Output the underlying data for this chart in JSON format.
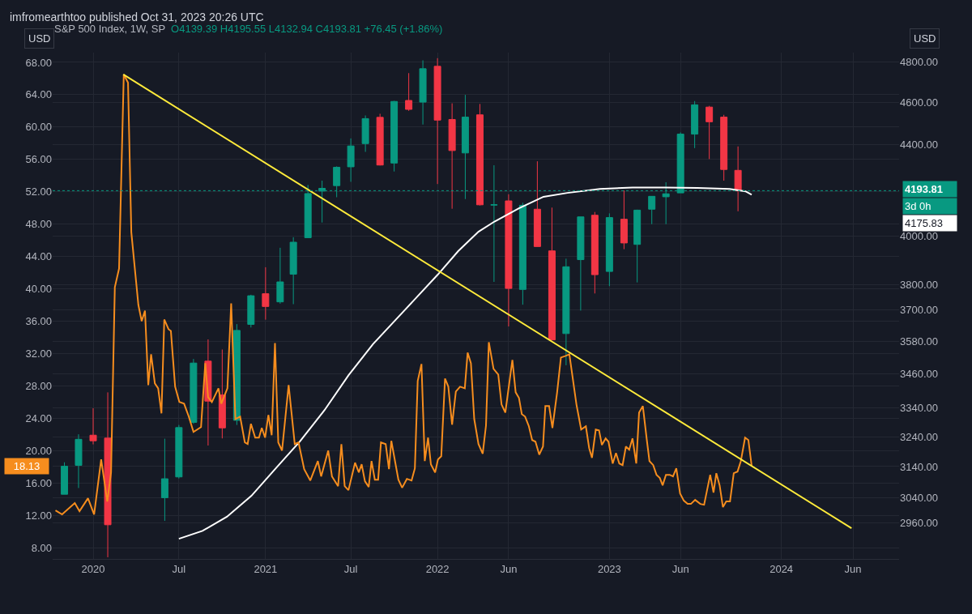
{
  "chart_data": {
    "type": "candlestick",
    "title": "S&P 500 Index, 1W, SP",
    "subtitle": "O4139.39 H4195.55 L4132.94 C4193.81 +76.45 (+1.86%)",
    "ylabel": "USD",
    "y2label": "USD",
    "xlim": [
      "2019-10-07",
      "2024-09-07"
    ],
    "xticks": [
      {
        "value": "2020-01-01",
        "label": "2020"
      },
      {
        "value": "2020-07-01",
        "label": "Jul"
      },
      {
        "value": "2021-01-01",
        "label": "2021"
      },
      {
        "value": "2021-07-01",
        "label": "Jul"
      },
      {
        "value": "2022-01-01",
        "label": "2022"
      },
      {
        "value": "2022-06-01",
        "label": "Jun"
      },
      {
        "value": "2023-01-01",
        "label": "2023"
      },
      {
        "value": "2023-06-01",
        "label": "Jun"
      },
      {
        "value": "2024-01-01",
        "label": "2024"
      },
      {
        "value": "2024-06-01",
        "label": "Jun"
      }
    ],
    "ylim": [
      6.6,
      69.2
    ],
    "yticks": [
      {
        "value": 8,
        "label": "8.00"
      },
      {
        "value": 12,
        "label": "12.00"
      },
      {
        "value": 16,
        "label": "16.00"
      },
      {
        "value": 20,
        "label": "20.00"
      },
      {
        "value": 24,
        "label": "24.00"
      },
      {
        "value": 28,
        "label": "28.00"
      },
      {
        "value": 32,
        "label": "32.00"
      },
      {
        "value": 36,
        "label": "36.00"
      },
      {
        "value": 40,
        "label": "40.00"
      },
      {
        "value": 44,
        "label": "44.00"
      },
      {
        "value": 48,
        "label": "48.00"
      },
      {
        "value": 52,
        "label": "52.00"
      },
      {
        "value": 56,
        "label": "56.00"
      },
      {
        "value": 60,
        "label": "60.00"
      },
      {
        "value": 64,
        "label": "64.00"
      },
      {
        "value": 68,
        "label": "68.00"
      }
    ],
    "y2lim": [
      2850,
      4847
    ],
    "y2ticks": [
      {
        "value": 2960,
        "label": "2960.00"
      },
      {
        "value": 3040,
        "label": "3040.00"
      },
      {
        "value": 3140,
        "label": "3140.00"
      },
      {
        "value": 3240,
        "label": "3240.00"
      },
      {
        "value": 3340,
        "label": "3340.00"
      },
      {
        "value": 3460,
        "label": "3460.00"
      },
      {
        "value": 3580,
        "label": "3580.00"
      },
      {
        "value": 3700,
        "label": "3700.00"
      },
      {
        "value": 3800,
        "label": "3800.00"
      },
      {
        "value": 4000,
        "label": "4000.00"
      },
      {
        "value": 4400,
        "label": "4400.00"
      },
      {
        "value": 4600,
        "label": "4600.00"
      },
      {
        "value": 4800,
        "label": "4800.00"
      }
    ],
    "log": "y2",
    "grid": true,
    "series": [
      {
        "type": "line",
        "color": "#f68d1e",
        "x": [
          "2019-10-13",
          "2019-10-27",
          "2019-11-23",
          "2019-12-03",
          "2019-12-21",
          "2020-01-03",
          "2020-01-18",
          "2020-01-31",
          "2020-02-08",
          "2020-02-16",
          "2020-02-25",
          "2020-03-06",
          "2020-03-15",
          "2020-03-22",
          "2020-04-01",
          "2020-04-06",
          "2020-04-13",
          "2020-04-20",
          "2020-04-27",
          "2020-05-03",
          "2020-05-11",
          "2020-05-18",
          "2020-05-25",
          "2020-05-31",
          "2020-06-09",
          "2020-06-14",
          "2020-06-23",
          "2020-07-02",
          "2020-07-12",
          "2020-07-22",
          "2020-08-01",
          "2020-08-17",
          "2020-08-26",
          "2020-09-01",
          "2020-09-09",
          "2020-09-23",
          "2020-09-29",
          "2020-10-12",
          "2020-10-20",
          "2020-10-29",
          "2020-11-08",
          "2020-11-18",
          "2020-11-24",
          "2020-12-01",
          "2020-12-10",
          "2020-12-18",
          "2020-12-24",
          "2020-12-31",
          "2021-01-07",
          "2021-01-14",
          "2021-01-21",
          "2021-01-28",
          "2021-02-05",
          "2021-02-19",
          "2021-03-04",
          "2021-03-12",
          "2021-03-24",
          "2021-04-06",
          "2021-04-22",
          "2021-04-29",
          "2021-05-14",
          "2021-05-22",
          "2021-06-04",
          "2021-06-11",
          "2021-06-18",
          "2021-06-26",
          "2021-07-10",
          "2021-07-18",
          "2021-07-24",
          "2021-07-31",
          "2021-08-08",
          "2021-08-14",
          "2021-08-21",
          "2021-08-28",
          "2021-09-03",
          "2021-09-13",
          "2021-09-20",
          "2021-09-25",
          "2021-10-10",
          "2021-10-18",
          "2021-10-28",
          "2021-11-07",
          "2021-11-14",
          "2021-11-20",
          "2021-11-28",
          "2021-12-05",
          "2021-12-12",
          "2021-12-18",
          "2021-12-27",
          "2022-01-02",
          "2022-01-09",
          "2022-01-17",
          "2022-01-24",
          "2022-02-01",
          "2022-02-09",
          "2022-02-18",
          "2022-02-28",
          "2022-03-06",
          "2022-03-13",
          "2022-03-20",
          "2022-03-29",
          "2022-04-07",
          "2022-04-14",
          "2022-04-20",
          "2022-04-30",
          "2022-05-10",
          "2022-05-17",
          "2022-05-25",
          "2022-06-09",
          "2022-06-16",
          "2022-06-23",
          "2022-06-29",
          "2022-07-06",
          "2022-07-14",
          "2022-07-21",
          "2022-07-28",
          "2022-08-05",
          "2022-08-13",
          "2022-08-18",
          "2022-08-26",
          "2022-09-02",
          "2022-09-12",
          "2022-09-20",
          "2022-09-30",
          "2022-10-08",
          "2022-10-23",
          "2022-11-02",
          "2022-11-12",
          "2022-11-19",
          "2022-11-25",
          "2022-12-03",
          "2022-12-10",
          "2022-12-16",
          "2022-12-24",
          "2022-12-30",
          "2023-01-08",
          "2023-01-15",
          "2023-01-22",
          "2023-01-29",
          "2023-02-05",
          "2023-02-12",
          "2023-02-19",
          "2023-02-27",
          "2023-03-05",
          "2023-03-13",
          "2023-03-21",
          "2023-03-27",
          "2023-04-04",
          "2023-04-11",
          "2023-04-18",
          "2023-04-24",
          "2023-05-01",
          "2023-05-09",
          "2023-05-16",
          "2023-05-23",
          "2023-05-31",
          "2023-06-08",
          "2023-06-16",
          "2023-06-23",
          "2023-07-02",
          "2023-07-13",
          "2023-07-21",
          "2023-08-03",
          "2023-08-10",
          "2023-08-16",
          "2023-08-23",
          "2023-08-30",
          "2023-09-06",
          "2023-09-14",
          "2023-09-22",
          "2023-09-30",
          "2023-10-07",
          "2023-10-16",
          "2023-10-23",
          "2023-10-30"
        ],
        "values": [
          12.6,
          12.1,
          13.5,
          12.5,
          14.1,
          12.1,
          18.9,
          13.7,
          17.3,
          40.2,
          42.5,
          66.5,
          65.5,
          47,
          41,
          38,
          36,
          37.3,
          28.1,
          31.9,
          28.3,
          27.7,
          24.6,
          36.2,
          35.0,
          34.8,
          27.9,
          26.0,
          25.8,
          24.2,
          22.3,
          22.9,
          30.8,
          26.6,
          26.0,
          27.7,
          25.8,
          27.7,
          38.2,
          23.9,
          24.2,
          21.0,
          20.8,
          23.3,
          21.6,
          21.6,
          22.8,
          21.6,
          24.4,
          21.9,
          33.3,
          21.0,
          20.0,
          28.1,
          20.8,
          21.0,
          17.7,
          16.3,
          18.7,
          16.8,
          20.0,
          16.8,
          15.6,
          20.8,
          15.6,
          15.1,
          18.5,
          17.3,
          18.3,
          16.2,
          15.5,
          18.7,
          16.4,
          16.4,
          21.0,
          20.8,
          17.7,
          21.2,
          16.4,
          15.4,
          16.5,
          16.3,
          17.8,
          28.6,
          30.7,
          18.7,
          21.6,
          18.3,
          17.3,
          18.9,
          19.3,
          28.9,
          27.9,
          23.2,
          27.3,
          27.9,
          27.7,
          32.1,
          30.8,
          23.9,
          20.8,
          19.6,
          23.1,
          33.4,
          30.1,
          29.4,
          25.7,
          24.7,
          31.2,
          27.2,
          26.5,
          24.5,
          24.2,
          23.0,
          21.3,
          21.1,
          19.5,
          20.5,
          25.5,
          25.5,
          22.8,
          27.2,
          31.5,
          31.7,
          31.9,
          25.7,
          22.6,
          23.0,
          20.3,
          19.1,
          22.6,
          22.5,
          20.7,
          21.5,
          21.1,
          18.4,
          19.7,
          18.4,
          18.2,
          20.5,
          20.1,
          21.5,
          18.4,
          24.7,
          25.5,
          21.5,
          18.7,
          18.2,
          17.0,
          16.6,
          15.7,
          17.0,
          17.0,
          16.8,
          17.8,
          14.7,
          13.8,
          13.4,
          13.4,
          13.9,
          13.4,
          13.3,
          17.0,
          14.8,
          17.2,
          15.7,
          13.0,
          13.7,
          13.7,
          17.2,
          17.4,
          18.7,
          21.6,
          21.3,
          18.1
        ]
      },
      {
        "type": "line",
        "color": "#ffeb3b",
        "x": [
          "2020-03-05",
          "2024-05-29"
        ],
        "values": [
          66.5,
          10.4
        ]
      },
      {
        "type": "line",
        "color": "#ffffff",
        "axis": "y2",
        "x": [
          "2020-07-01",
          "2020-08-20",
          "2020-10-11",
          "2020-12-02",
          "2021-01-22",
          "2021-03-15",
          "2021-05-06",
          "2021-06-26",
          "2021-08-17",
          "2021-10-25",
          "2022-01-02",
          "2022-02-14",
          "2022-03-29",
          "2022-05-02",
          "2022-06-23",
          "2022-08-14",
          "2022-10-04",
          "2022-12-12",
          "2023-02-19",
          "2023-04-29",
          "2023-07-07",
          "2023-09-13",
          "2023-10-17",
          "2023-10-30"
        ],
        "values": [
          2911,
          2935,
          2979,
          3045,
          3133,
          3224,
          3331,
          3455,
          3570,
          3703,
          3841,
          3936,
          4017,
          4060,
          4117,
          4167,
          4184,
          4201,
          4208,
          4208,
          4206,
          4201,
          4191,
          4176
        ]
      },
      {
        "axis": "y2",
        "colors": [
          "#089981",
          "#089981",
          "#f23645",
          "#f23645",
          "#089981",
          "#089981",
          "#089981",
          "#f23645",
          "#f23645",
          "#089981",
          "#089981",
          "#f23645",
          "#089981",
          "#089981",
          "#089981",
          "#089981",
          "#089981",
          "#089981",
          "#089981",
          "#f23645",
          "#089981",
          "#f23645",
          "#089981",
          "#f23645",
          "#f23645",
          "#089981",
          "#f23645",
          "#089981",
          "#f23645",
          "#089981",
          "#f23645",
          "#f23645",
          "#089981",
          "#089981",
          "#f23645",
          "#089981",
          "#f23645",
          "#089981",
          "#089981",
          "#089981",
          "#089981",
          "#089981",
          "#f23645",
          "#f23645",
          "#f23645"
        ],
        "x": [
          "2019-11",
          "2019-12",
          "2020-01",
          "2020-02",
          "2020-06",
          "2020-07",
          "2020-08",
          "2020-09",
          "2020-10",
          "2020-11",
          "2020-12",
          "2021-01",
          "2021-02",
          "2021-03",
          "2021-04",
          "2021-05",
          "2021-06",
          "2021-07",
          "2021-08",
          "2021-09",
          "2021-10",
          "2021-11",
          "2021-12",
          "2022-01",
          "2022-02",
          "2022-03",
          "2022-04",
          "2022-05",
          "2022-06",
          "2022-07",
          "2022-08",
          "2022-09",
          "2022-10",
          "2022-11",
          "2022-12",
          "2023-01",
          "2023-02",
          "2023-03",
          "2023-04",
          "2023-05",
          "2023-06",
          "2023-07",
          "2023-08",
          "2023-09",
          "2023-10"
        ],
        "ohlc": [
          [
            3050,
            3154,
            3050,
            3141
          ],
          [
            3144,
            3248,
            3070,
            3231
          ],
          [
            3245,
            3338,
            3214,
            3226
          ],
          [
            3235,
            3394,
            2855,
            2954
          ],
          [
            3039,
            3233,
            2966,
            3100
          ],
          [
            3106,
            3280,
            3101,
            3271
          ],
          [
            3289,
            3515,
            3284,
            3500
          ],
          [
            3507,
            3588,
            3210,
            3363
          ],
          [
            3385,
            3550,
            3234,
            3270
          ],
          [
            3296,
            3646,
            3280,
            3622
          ],
          [
            3645,
            3760,
            3633,
            3756
          ],
          [
            3764,
            3870,
            3663,
            3714
          ],
          [
            3732,
            3950,
            3725,
            3811
          ],
          [
            3842,
            3994,
            3723,
            3973
          ],
          [
            3992,
            4219,
            3992,
            4181
          ],
          [
            4192,
            4238,
            4056,
            4204
          ],
          [
            4216,
            4302,
            4165,
            4298
          ],
          [
            4300,
            4430,
            4233,
            4395
          ],
          [
            4406,
            4538,
            4368,
            4523
          ],
          [
            4529,
            4546,
            4306,
            4308
          ],
          [
            4317,
            4608,
            4279,
            4605
          ],
          [
            4610,
            4744,
            4560,
            4567
          ],
          [
            4602,
            4808,
            4495,
            4766
          ],
          [
            4778,
            4819,
            4223,
            4516
          ],
          [
            4519,
            4596,
            4115,
            4374
          ],
          [
            4363,
            4637,
            4157,
            4530
          ],
          [
            4541,
            4593,
            4129,
            4132
          ],
          [
            4131,
            4307,
            3811,
            4132
          ],
          [
            4149,
            4178,
            3637,
            3785
          ],
          [
            3781,
            4141,
            3721,
            4130
          ],
          [
            4113,
            4325,
            3955,
            3955
          ],
          [
            3937,
            4120,
            3585,
            3586
          ],
          [
            3610,
            3905,
            3492,
            3872
          ],
          [
            3901,
            4080,
            3698,
            4080
          ],
          [
            4087,
            4101,
            3765,
            3840
          ],
          [
            3853,
            4095,
            3794,
            4077
          ],
          [
            4070,
            4195,
            3944,
            3970
          ],
          [
            3964,
            4111,
            3809,
            4109
          ],
          [
            4113,
            4170,
            4049,
            4169
          ],
          [
            4167,
            4231,
            4049,
            4180
          ],
          [
            4184,
            4458,
            4184,
            4450
          ],
          [
            4450,
            4607,
            4385,
            4589
          ],
          [
            4578,
            4584,
            4335,
            4508
          ],
          [
            4530,
            4541,
            4238,
            4288
          ],
          [
            4284,
            4393,
            4104,
            4193.81
          ]
        ]
      }
    ],
    "ref_lines": [
      {
        "axis": "y2",
        "value": 4193.81,
        "label": "4193.81",
        "color": "#089981",
        "line_style": "dotted"
      }
    ],
    "annotations": [
      "imfromearthtoo published Oct 31, 2023 20:26 UTC",
      "18.13",
      "4175.83",
      "3d 0h"
    ]
  }
}
